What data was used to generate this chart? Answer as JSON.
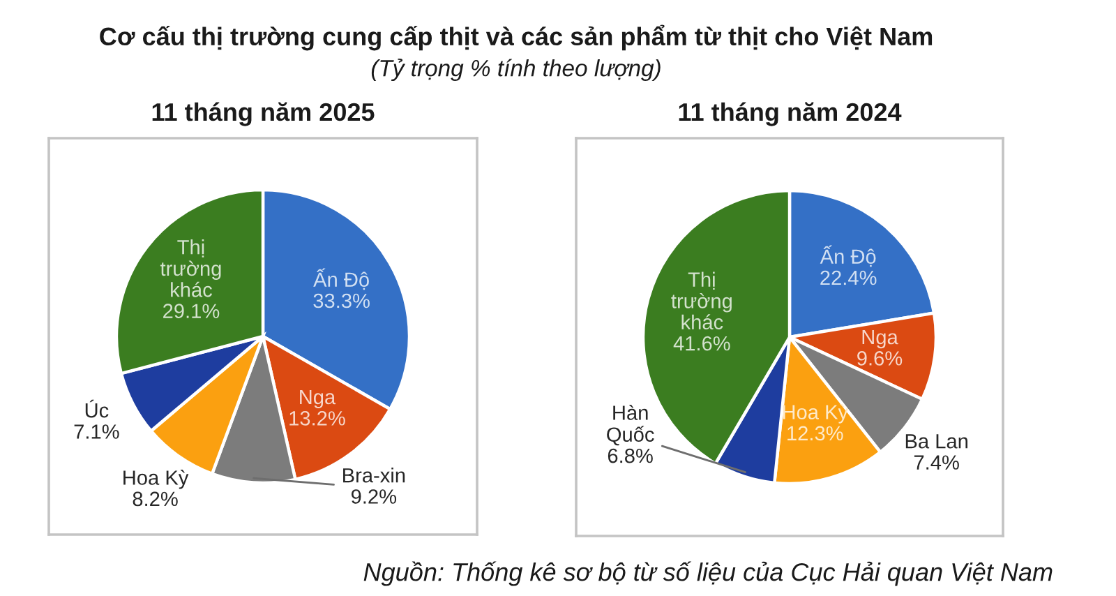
{
  "chart_data": [
    {
      "type": "other",
      "title": "Cơ cấu thị trường cung cấp thịt và các sản phẩm từ thịt cho Việt Nam",
      "subtitle": "(Tỷ trọng % tính theo lượng)",
      "annotations": [
        "Nguồn: Thống kê sơ bộ từ số liệu của Cục Hải quan Việt Nam"
      ]
    },
    {
      "type": "pie",
      "title": "11 tháng năm 2025",
      "categories": [
        "Ấn Độ",
        "Nga",
        "Bra-xin",
        "Hoa Kỳ",
        "Úc",
        "Thị\ntrường\nkhác"
      ],
      "values": [
        33.3,
        13.2,
        9.2,
        8.2,
        7.1,
        29.1
      ],
      "value_labels": [
        "33.3%",
        "13.2%",
        "9.2%",
        "8.2%",
        "7.1%",
        "29.1%"
      ],
      "colors": [
        "#3470c6",
        "#db4a12",
        "#7c7c7c",
        "#fba010",
        "#1e3d9f",
        "#3b7d20"
      ]
    },
    {
      "type": "pie",
      "title": "11 tháng năm 2024",
      "categories": [
        "Ấn Độ",
        "Nga",
        "Ba Lan",
        "Hoa Kỳ",
        "Hàn\nQuốc",
        "Thị\ntrường\nkhác"
      ],
      "values": [
        22.4,
        9.6,
        7.4,
        12.3,
        6.8,
        41.6
      ],
      "value_labels": [
        "22.4%",
        "9.6%",
        "7.4%",
        "12.3%",
        "6.8%",
        "41.6%"
      ],
      "colors": [
        "#3470c6",
        "#db4a12",
        "#7c7c7c",
        "#fba010",
        "#1e3d9f",
        "#3b7d20"
      ]
    }
  ]
}
